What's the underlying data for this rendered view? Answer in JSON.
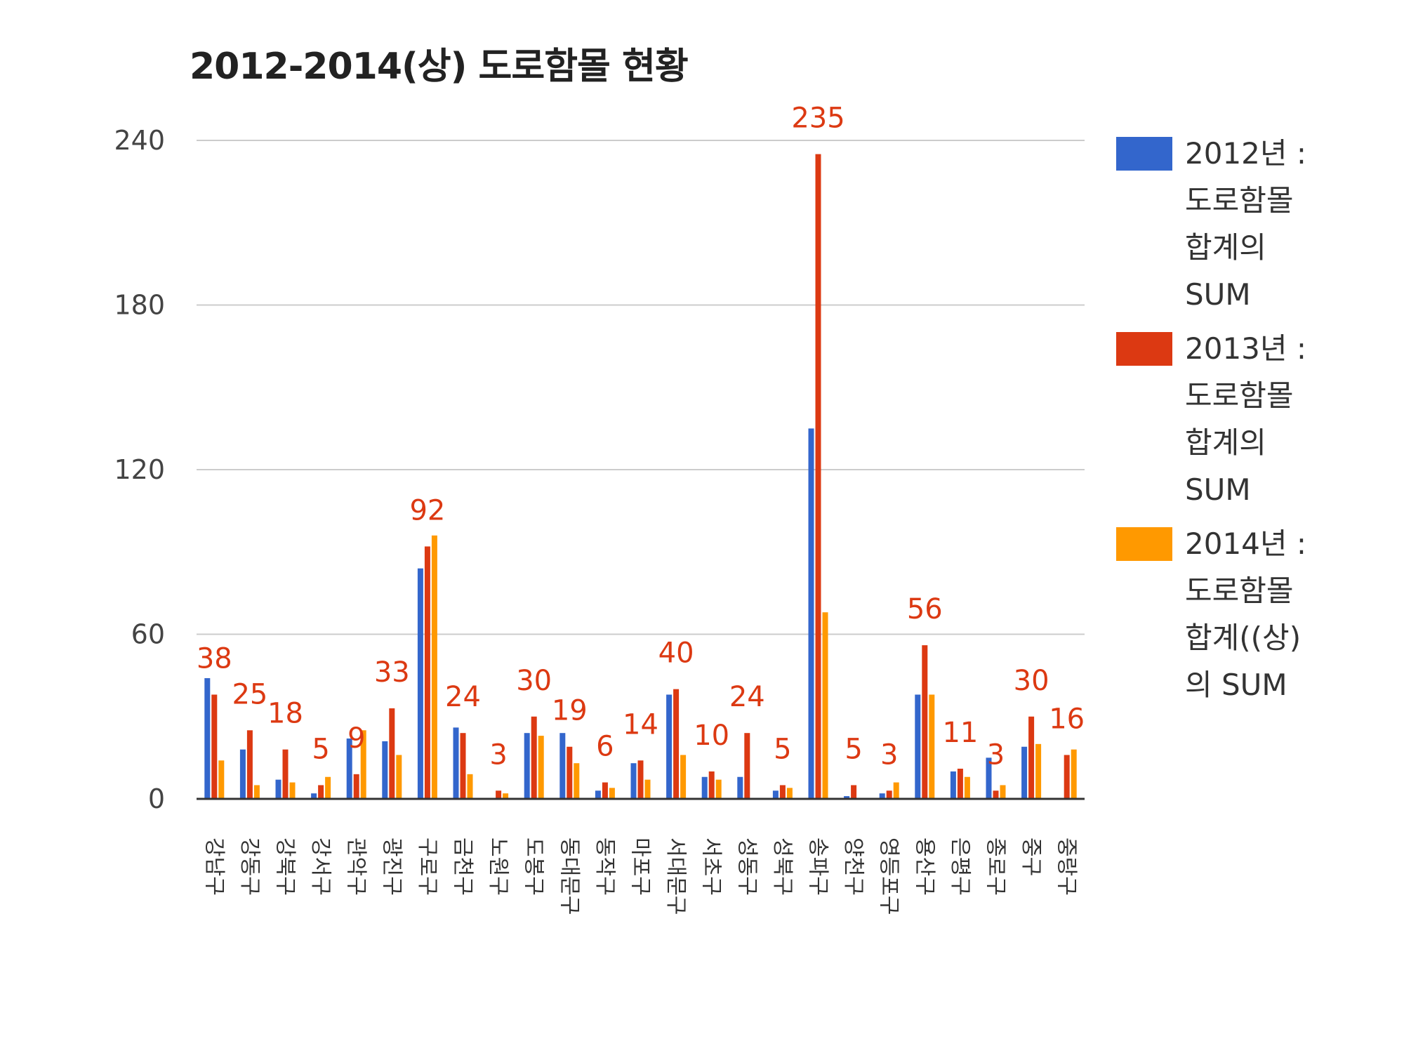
{
  "chart_data": {
    "type": "bar",
    "title": "2012-2014(상) 도로함몰 현황",
    "xlabel": "",
    "ylabel": "",
    "ylim": [
      0,
      240
    ],
    "yticks": [
      0,
      60,
      120,
      180,
      240
    ],
    "grid": true,
    "legend_position": "right",
    "categories": [
      "강남구",
      "강동구",
      "강북구",
      "강서구",
      "관악구",
      "광진구",
      "구로구",
      "금천구",
      "노원구",
      "도봉구",
      "동대문구",
      "동작구",
      "마포구",
      "서대문구",
      "서초구",
      "성동구",
      "성북구",
      "송파구",
      "양천구",
      "영등포구",
      "용산구",
      "은평구",
      "종로구",
      "중구",
      "중랑구"
    ],
    "series": [
      {
        "name": "2012년 : 도로함몰 합계의 SUM",
        "color": "#3366cc",
        "values": [
          44,
          18,
          7,
          2,
          22,
          21,
          84,
          26,
          0,
          24,
          24,
          3,
          13,
          38,
          8,
          8,
          3,
          135,
          1,
          2,
          38,
          10,
          15,
          19,
          0
        ]
      },
      {
        "name": "2013년 : 도로함몰 합계의 SUM",
        "color": "#dc3912",
        "values": [
          38,
          25,
          18,
          5,
          9,
          33,
          92,
          24,
          3,
          30,
          19,
          6,
          14,
          40,
          10,
          24,
          5,
          235,
          5,
          3,
          56,
          11,
          3,
          30,
          16
        ]
      },
      {
        "name": "2014년 : 도로함몰 합계((상)의 SUM",
        "color": "#ff9900",
        "values": [
          14,
          5,
          6,
          8,
          25,
          16,
          96,
          9,
          2,
          23,
          13,
          4,
          7,
          16,
          7,
          0,
          4,
          68,
          0,
          6,
          38,
          8,
          5,
          20,
          18
        ]
      }
    ],
    "data_labels": [
      38,
      25,
      18,
      5,
      9,
      33,
      92,
      24,
      3,
      30,
      19,
      6,
      14,
      40,
      10,
      24,
      5,
      235,
      5,
      3,
      56,
      11,
      3,
      30,
      16
    ]
  },
  "legend": {
    "items": [
      {
        "color": "#3366cc",
        "lines": [
          "2012년 :",
          "도로함몰",
          "합계의",
          "SUM"
        ]
      },
      {
        "color": "#dc3912",
        "lines": [
          "2013년 :",
          "도로함몰",
          "합계의",
          "SUM"
        ]
      },
      {
        "color": "#ff9900",
        "lines": [
          "2014년 :",
          "도로함몰",
          "합계((상)",
          "의 SUM"
        ]
      }
    ]
  },
  "colors": {
    "gridline": "#cccccc",
    "axis": "#333333",
    "label": "#dc3912"
  }
}
